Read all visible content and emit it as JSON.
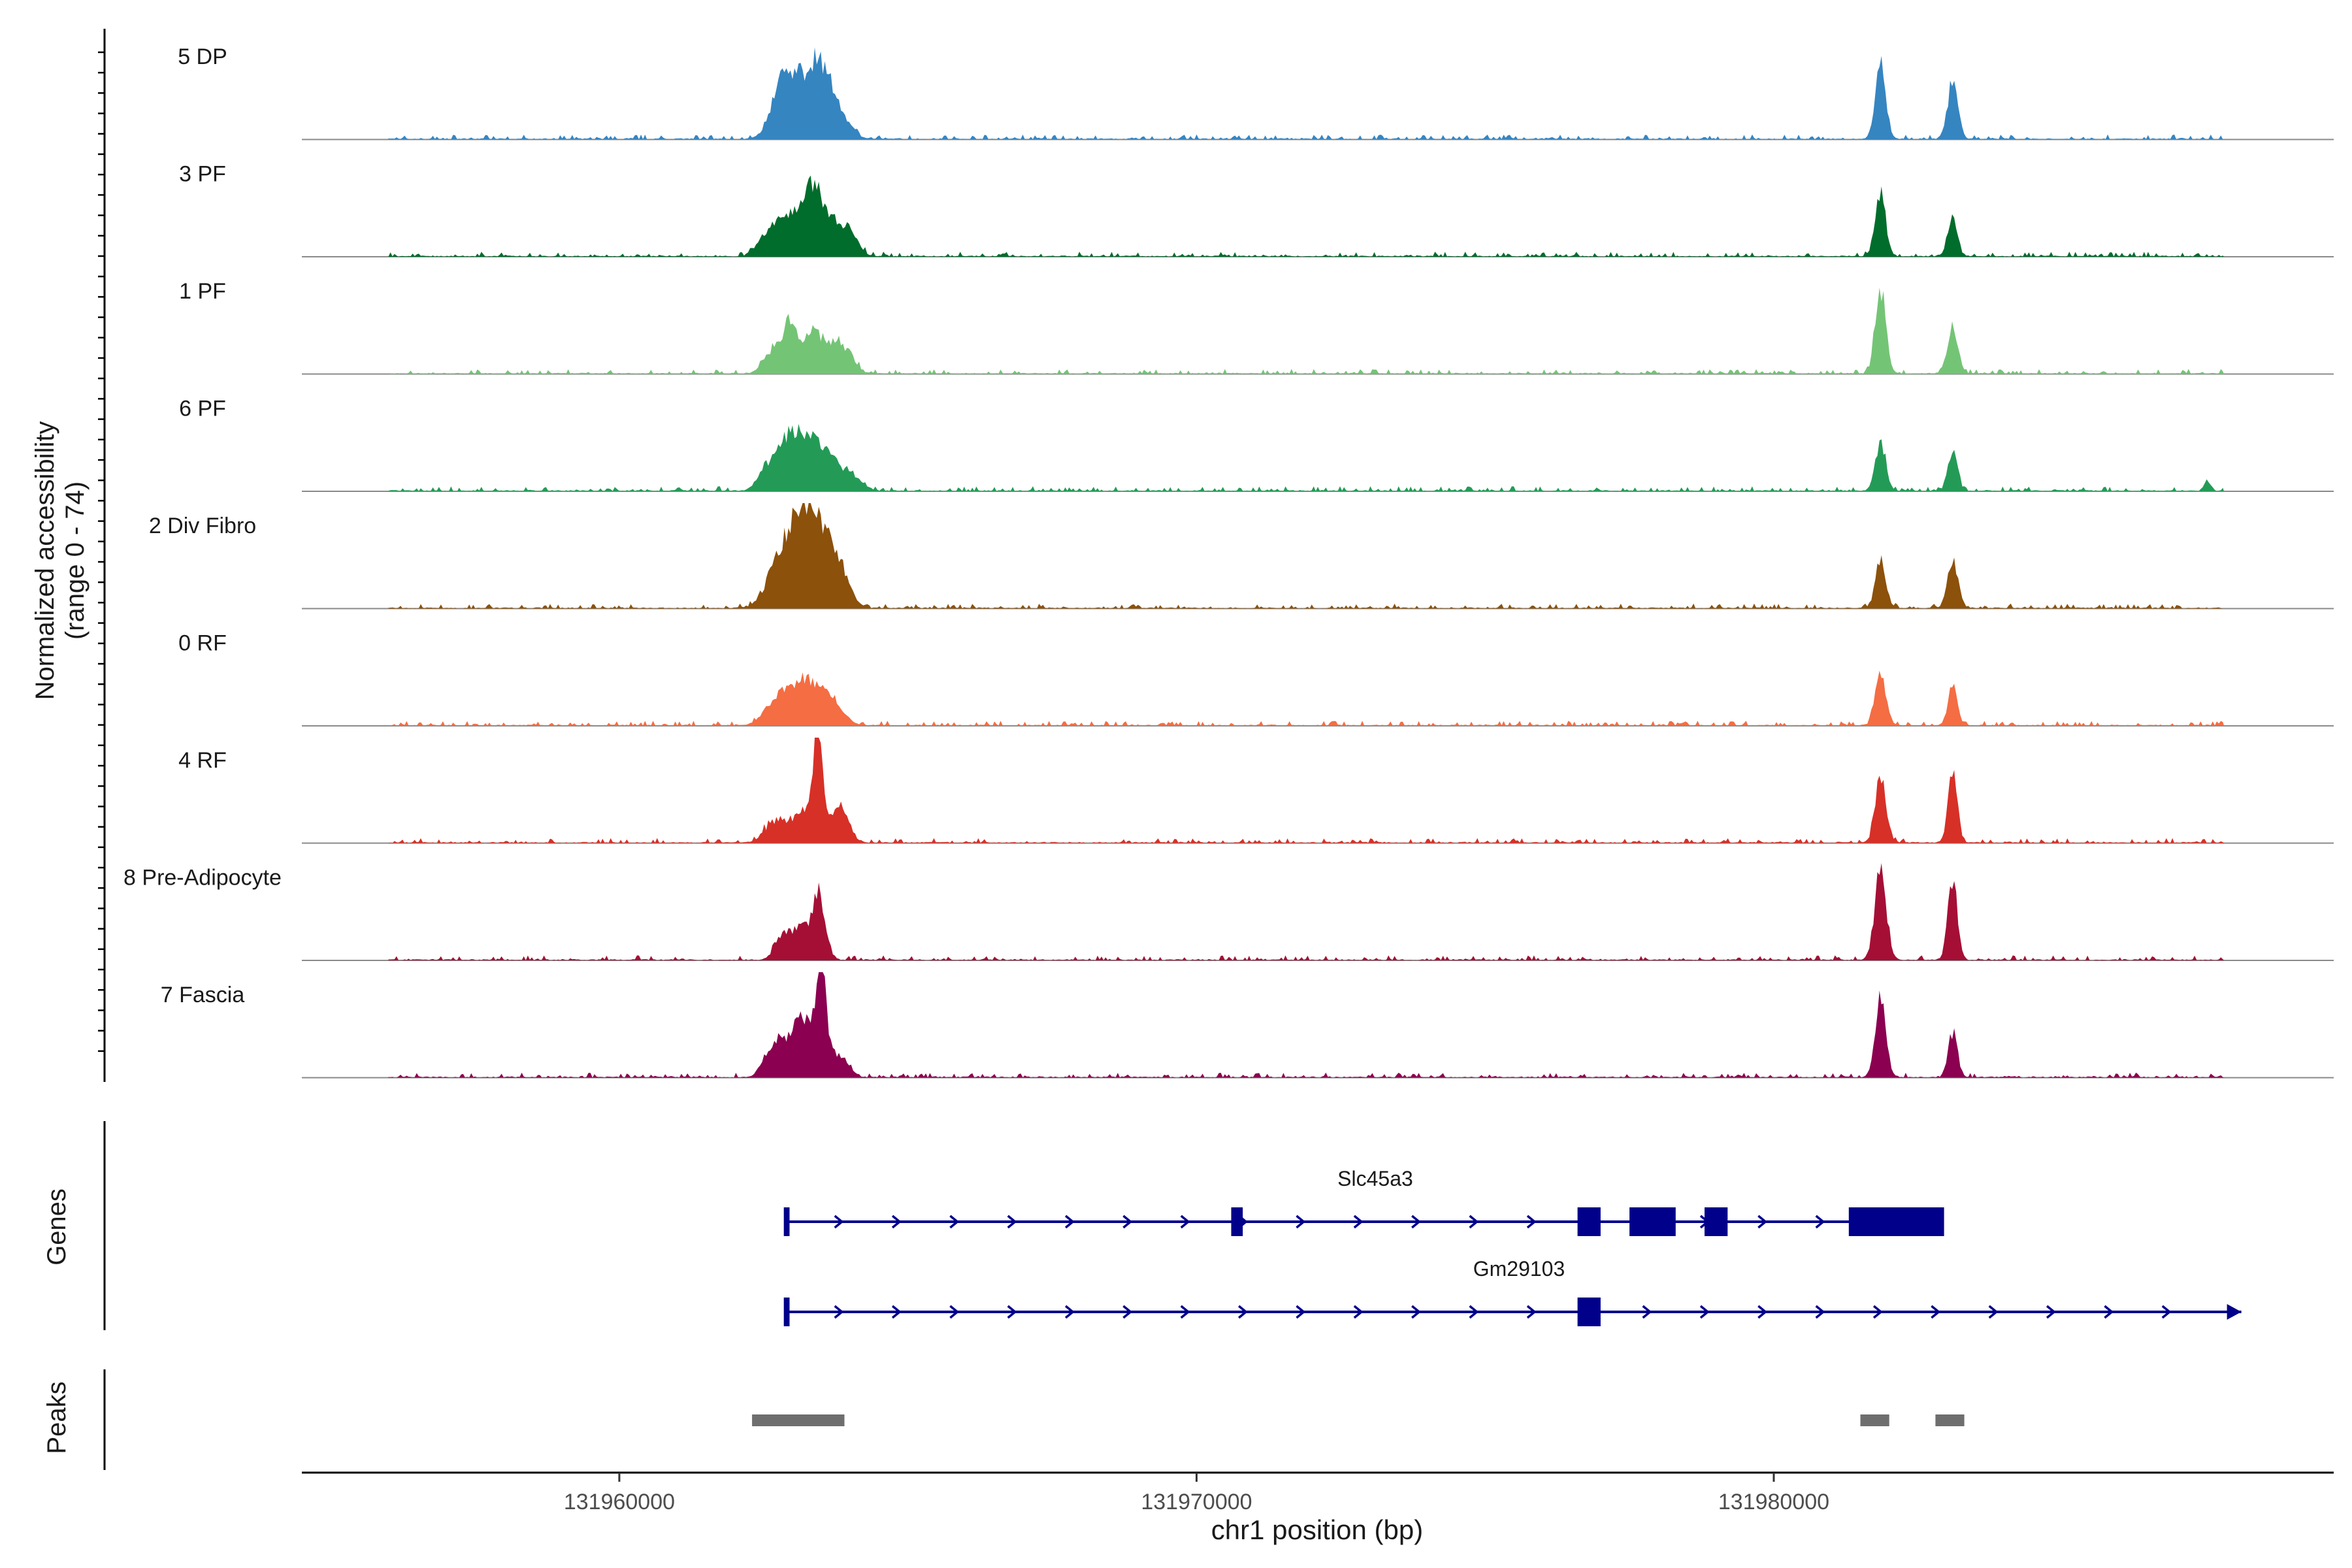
{
  "chart_data": {
    "type": "area",
    "genome_track": true,
    "chromosome": "chr1",
    "x_range": [
      131954500,
      131989700
    ],
    "xlabel": "chr1 position (bp)",
    "x_ticks": [
      {
        "value": 131960000,
        "label": "131960000"
      },
      {
        "value": 131970000,
        "label": "131970000"
      },
      {
        "value": 131980000,
        "label": "131980000"
      }
    ],
    "ylabel_line1": "Normalized accessibility",
    "ylabel_line2": "(range 0 - 74)",
    "y_range": [
      0,
      74
    ],
    "background_level": 0.03,
    "tracks": [
      {
        "name": "5 DP",
        "color": "#3585c1",
        "peaks": [
          [
            131963100,
            0.3,
            260
          ],
          [
            131963450,
            0.62,
            200
          ],
          [
            131962900,
            0.38,
            180
          ],
          [
            131963800,
            0.22,
            200
          ],
          [
            131962700,
            0.16,
            150
          ],
          [
            131981850,
            0.72,
            90
          ],
          [
            131983100,
            0.52,
            90
          ]
        ]
      },
      {
        "name": "3 PF",
        "color": "#006d2c",
        "peaks": [
          [
            131962900,
            0.42,
            220
          ],
          [
            131963350,
            0.58,
            160
          ],
          [
            131963700,
            0.3,
            220
          ],
          [
            131962500,
            0.12,
            150
          ],
          [
            131964000,
            0.14,
            150
          ],
          [
            131981850,
            0.6,
            90
          ],
          [
            131983100,
            0.4,
            80
          ]
        ]
      },
      {
        "name": "1 PF",
        "color": "#74c476",
        "peaks": [
          [
            131962650,
            0.22,
            150
          ],
          [
            131962950,
            0.48,
            120
          ],
          [
            131963350,
            0.4,
            180
          ],
          [
            131963750,
            0.26,
            160
          ],
          [
            131964000,
            0.12,
            130
          ],
          [
            131981850,
            0.82,
            90
          ],
          [
            131983100,
            0.46,
            90
          ]
        ]
      },
      {
        "name": "6 PF",
        "color": "#239b56",
        "peaks": [
          [
            131962900,
            0.46,
            220
          ],
          [
            131963300,
            0.4,
            220
          ],
          [
            131963700,
            0.26,
            200
          ],
          [
            131962500,
            0.12,
            140
          ],
          [
            131964100,
            0.1,
            150
          ],
          [
            131981850,
            0.46,
            90
          ],
          [
            131983100,
            0.4,
            80
          ],
          [
            131987500,
            0.1,
            50
          ]
        ]
      },
      {
        "name": "2 Div Fibro",
        "color": "#8c510a",
        "peaks": [
          [
            131962700,
            0.3,
            200
          ],
          [
            131963100,
            0.82,
            220
          ],
          [
            131963450,
            0.6,
            200
          ],
          [
            131963800,
            0.35,
            180
          ],
          [
            131981850,
            0.46,
            90
          ],
          [
            131983100,
            0.48,
            90
          ]
        ]
      },
      {
        "name": "0 RF",
        "color": "#f46d43",
        "peaks": [
          [
            131962900,
            0.34,
            200
          ],
          [
            131963300,
            0.38,
            180
          ],
          [
            131963700,
            0.24,
            180
          ],
          [
            131962550,
            0.1,
            140
          ],
          [
            131981850,
            0.5,
            90
          ],
          [
            131983100,
            0.4,
            80
          ]
        ]
      },
      {
        "name": "4 RF",
        "color": "#d73027",
        "peaks": [
          [
            131962900,
            0.2,
            220
          ],
          [
            131963300,
            0.3,
            160
          ],
          [
            131963450,
            0.82,
            80
          ],
          [
            131963800,
            0.36,
            160
          ],
          [
            131962600,
            0.1,
            140
          ],
          [
            131981850,
            0.66,
            90
          ],
          [
            131983100,
            0.66,
            80
          ]
        ]
      },
      {
        "name": "8 Pre-Adipocyte",
        "color": "#a50f35",
        "peaks": [
          [
            131963100,
            0.3,
            160
          ],
          [
            131963450,
            0.6,
            120
          ],
          [
            131962800,
            0.2,
            120
          ],
          [
            131981850,
            0.88,
            100
          ],
          [
            131983100,
            0.78,
            80
          ]
        ]
      },
      {
        "name": "7 Fascia",
        "color": "#8b0050",
        "peaks": [
          [
            131962950,
            0.34,
            220
          ],
          [
            131963300,
            0.44,
            200
          ],
          [
            131963500,
            0.82,
            80
          ],
          [
            131963800,
            0.2,
            160
          ],
          [
            131962600,
            0.18,
            140
          ],
          [
            131981850,
            0.82,
            90
          ],
          [
            131983100,
            0.44,
            80
          ]
        ]
      }
    ],
    "genes_label": "Genes",
    "genes": [
      {
        "name": "Slc45a3",
        "start": 131962900,
        "end": 131982900,
        "strand": "+",
        "exons": [
          [
            131962850,
            131962950
          ],
          [
            131970600,
            131970800
          ],
          [
            131976600,
            131977000
          ],
          [
            131977500,
            131978300
          ],
          [
            131978800,
            131979200
          ],
          [
            131981300,
            131982950
          ]
        ]
      },
      {
        "name": "Gm29103",
        "start": 131962900,
        "end": 131988100,
        "strand": "+",
        "exons": [
          [
            131962850,
            131962950
          ],
          [
            131976600,
            131977000
          ]
        ]
      }
    ],
    "peaks_label": "Peaks",
    "peak_regions": [
      [
        131962300,
        131963900
      ],
      [
        131981500,
        131982000
      ],
      [
        131982800,
        131983300
      ]
    ]
  }
}
